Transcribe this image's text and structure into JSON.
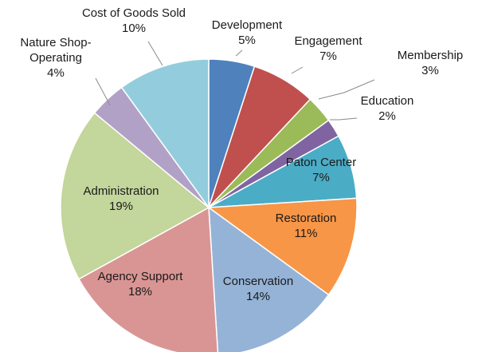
{
  "chart_data": {
    "type": "pie",
    "title": "",
    "legend": "none",
    "slices": [
      {
        "label": "Development",
        "value_text": "5%",
        "value": 5,
        "color": "#4f81bd"
      },
      {
        "label": "Engagement",
        "value_text": "7%",
        "value": 7,
        "color": "#c0504d"
      },
      {
        "label": "Membership",
        "value_text": "3%",
        "value": 3,
        "color": "#9bbb59"
      },
      {
        "label": "Education",
        "value_text": "2%",
        "value": 2,
        "color": "#8064a2"
      },
      {
        "label": "Paton Center",
        "value_text": "7%",
        "value": 7,
        "color": "#4bacc6"
      },
      {
        "label": "Restoration",
        "value_text": "11%",
        "value": 11,
        "color": "#f79646"
      },
      {
        "label": "Conservation",
        "value_text": "14%",
        "value": 14,
        "color": "#95b3d7"
      },
      {
        "label": "Agency Support",
        "value_text": "18%",
        "value": 18,
        "color": "#d99594"
      },
      {
        "label": "Administration",
        "value_text": "19%",
        "value": 19,
        "color": "#c3d69b"
      },
      {
        "label": "Nature Shop-\nOperating",
        "value_text": "4%",
        "value": 4,
        "color": "#b2a1c7"
      },
      {
        "label": "Cost of Goods Sold",
        "value_text": "10%",
        "value": 10,
        "color": "#93cddd"
      }
    ]
  }
}
